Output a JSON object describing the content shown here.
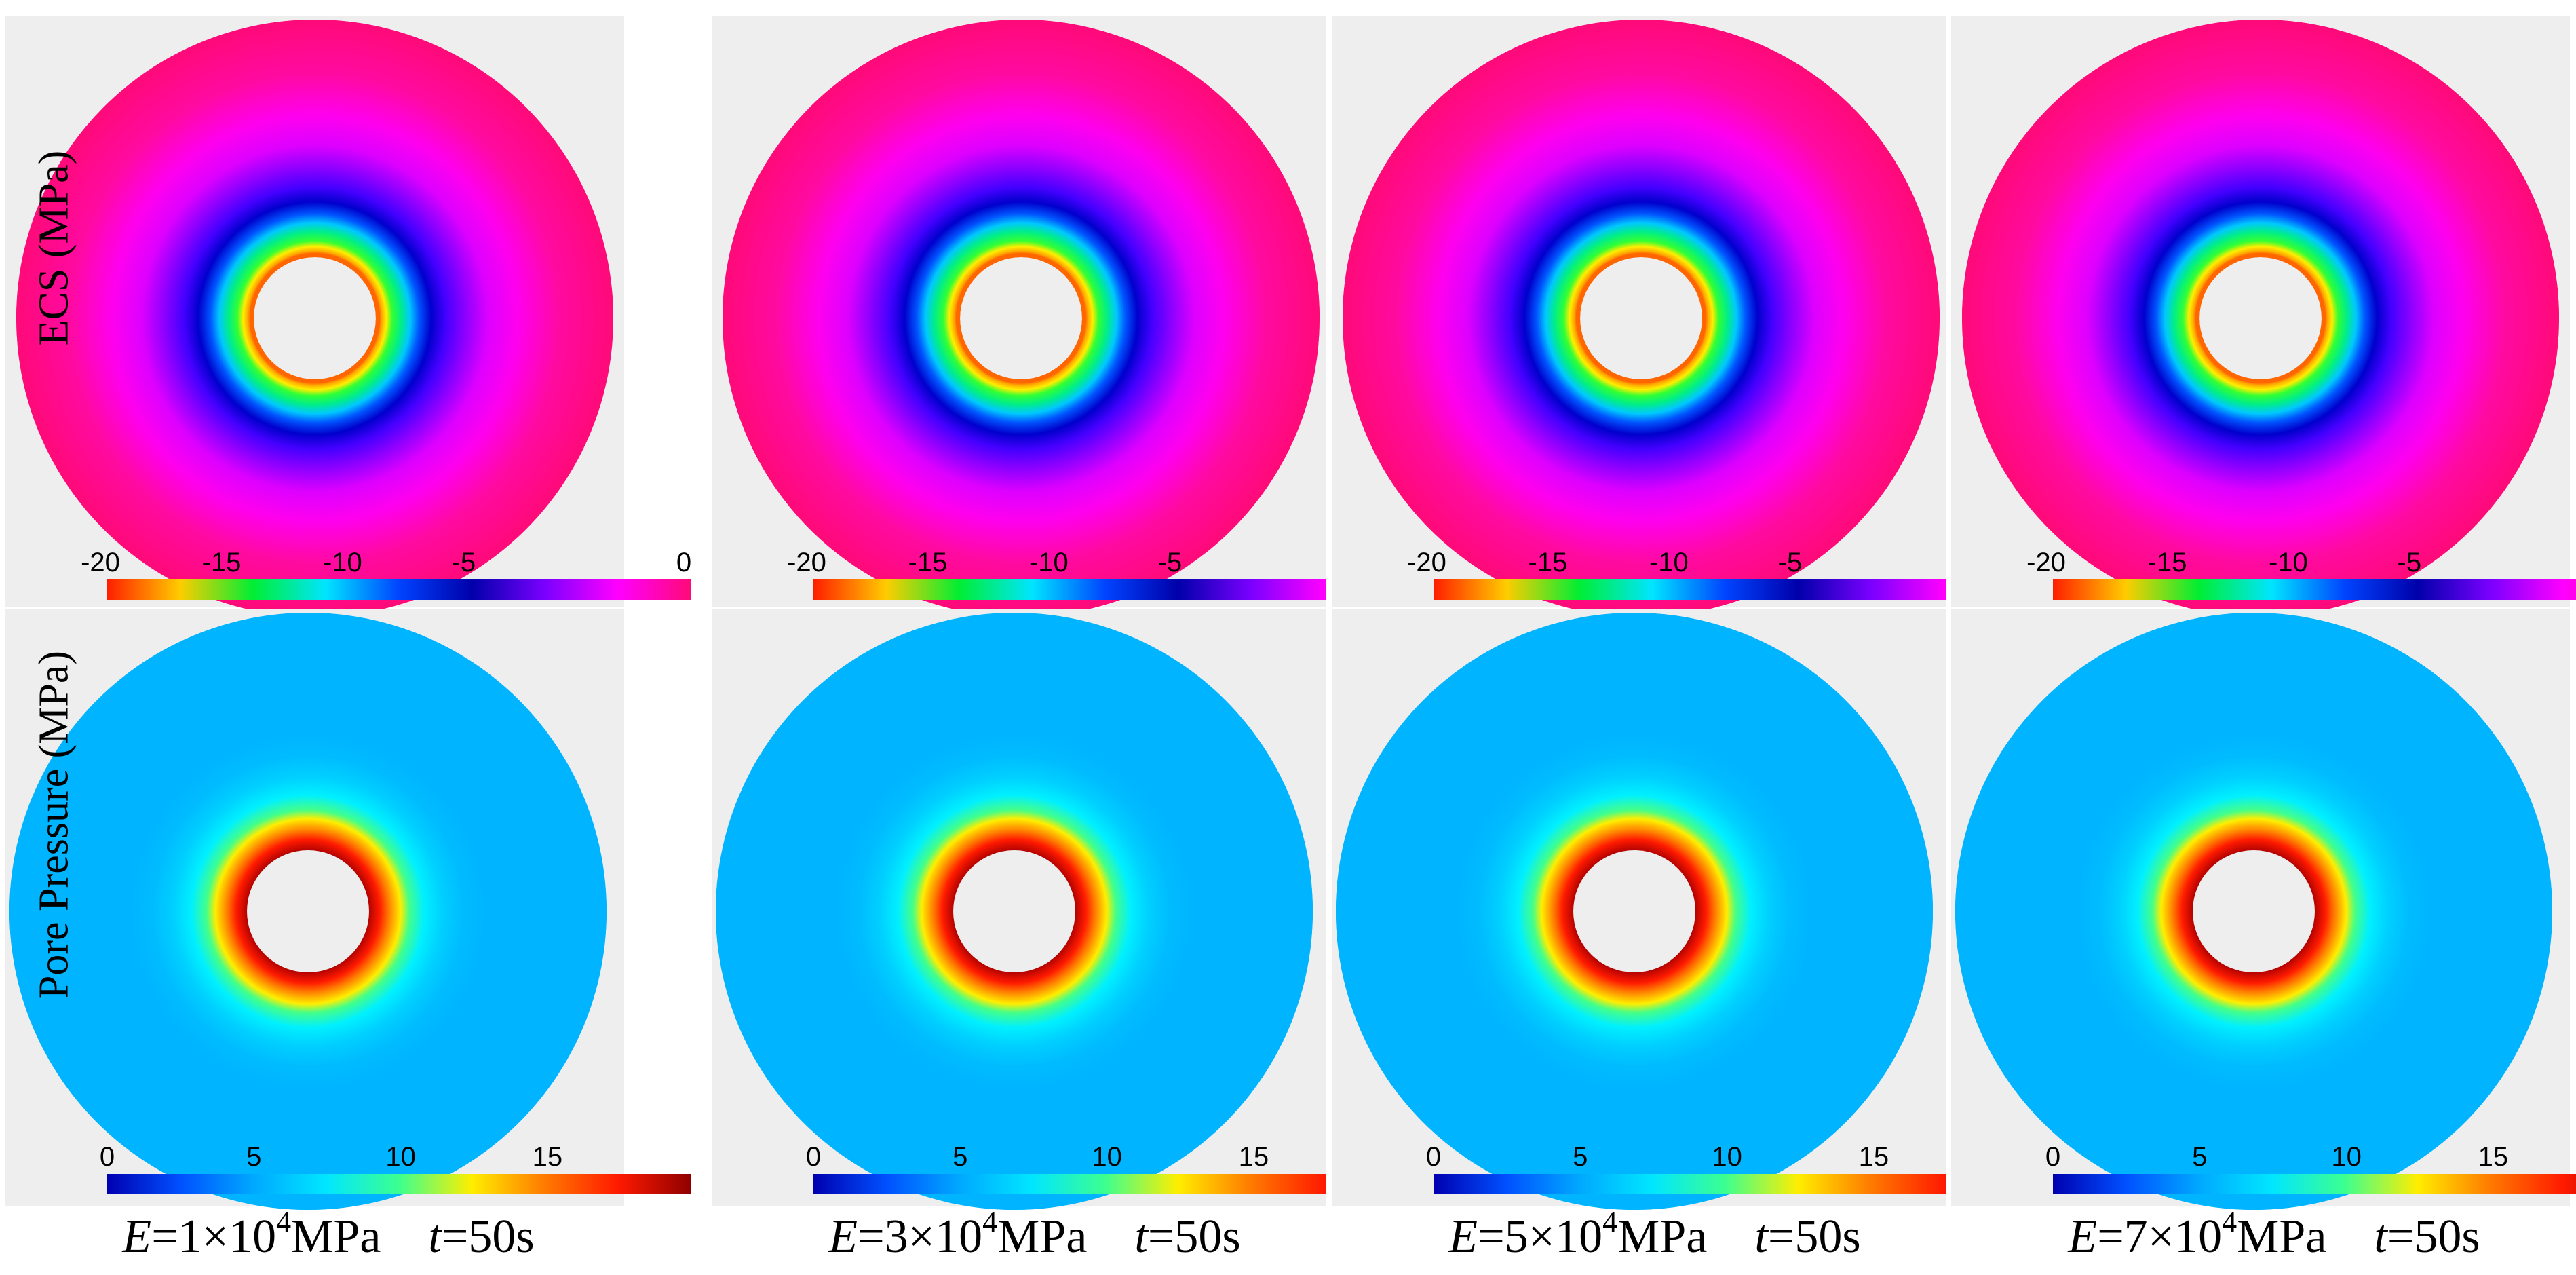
{
  "row_labels": {
    "top": "ECS (MPa)",
    "bottom": "Pore Pressure (MPa)"
  },
  "colors": {
    "panel_bg": "#eeeeee",
    "ecs_outer": "#ff0a78",
    "pore_outer": "#00b4ff",
    "hole": "#eeeeee"
  },
  "colorbars": {
    "ecs": {
      "ticks": [
        "-20",
        "-15",
        "-10",
        "-5",
        "0"
      ],
      "stops": [
        "#ff1e00",
        "#ffcc00",
        "#00ee33",
        "#00e5ff",
        "#0044ff",
        "#0000aa",
        "#7a00ff",
        "#ff00ff",
        "#ff0a78"
      ]
    },
    "pore": {
      "ticks": [
        "0",
        "5",
        "10",
        "15"
      ],
      "stops": [
        "#0000b0",
        "#0050ff",
        "#00a8ff",
        "#00e6ff",
        "#3cff90",
        "#ffee00",
        "#ff7a00",
        "#ff1a00",
        "#900000"
      ]
    }
  },
  "panels": [
    {
      "e_label": "E",
      "e_value": "=1×10",
      "e_exp": "4",
      "e_unit": "MPa",
      "t_label": "t",
      "t_value": "=50s"
    },
    {
      "e_label": "E",
      "e_value": "=3×10",
      "e_exp": "4",
      "e_unit": "MPa",
      "t_label": "t",
      "t_value": "=50s"
    },
    {
      "e_label": "E",
      "e_value": "=5×10",
      "e_exp": "4",
      "e_unit": "MPa",
      "t_label": "t",
      "t_value": "=50s"
    },
    {
      "e_label": "E",
      "e_value": "=7×10",
      "e_exp": "4",
      "e_unit": "MPa",
      "t_label": "t",
      "t_value": "=50s"
    }
  ]
}
